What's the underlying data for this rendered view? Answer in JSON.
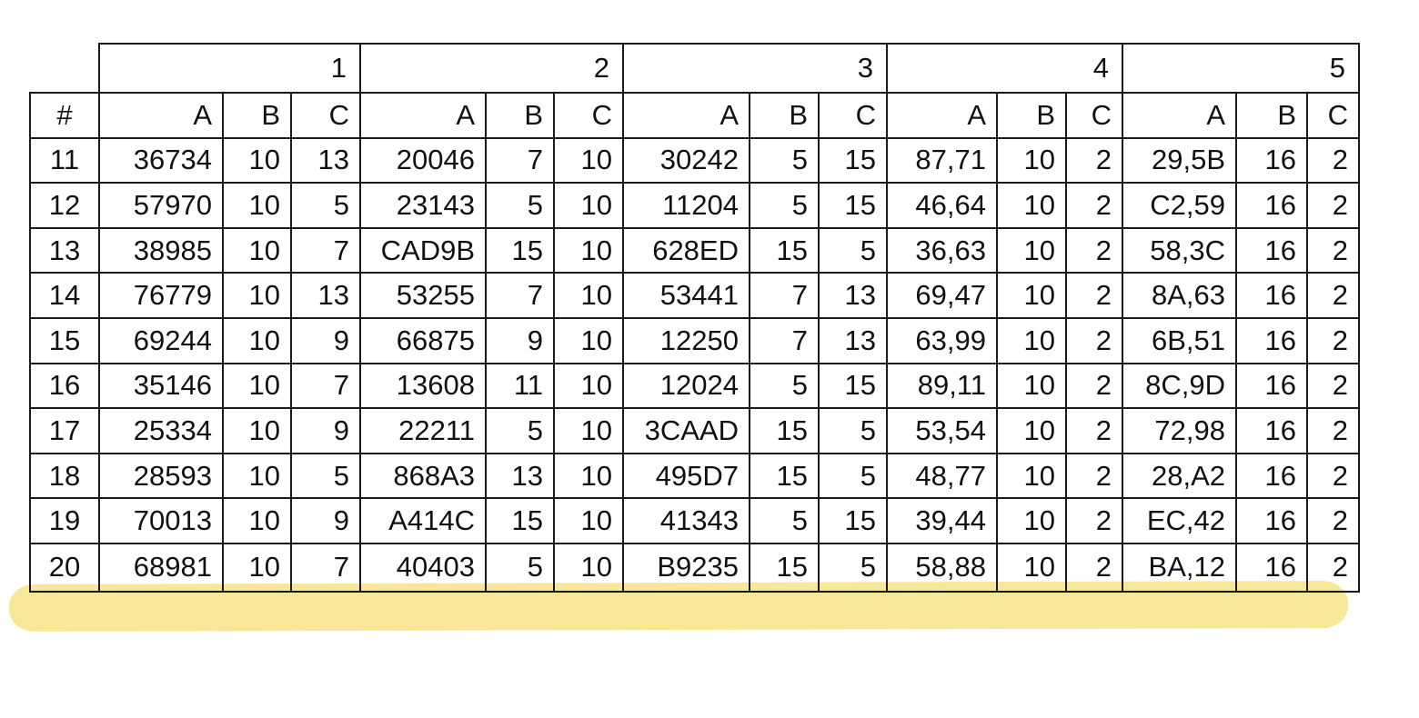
{
  "highlight_color": "#f5e27c",
  "corner_label": "#",
  "groups": [
    "1",
    "2",
    "3",
    "4",
    "5"
  ],
  "subcolumns": [
    "A",
    "B",
    "C"
  ],
  "rows": [
    [
      "11",
      "36734",
      "10",
      "13",
      "20046",
      "7",
      "10",
      "30242",
      "5",
      "15",
      "87,71",
      "10",
      "2",
      "29,5B",
      "16",
      "2"
    ],
    [
      "12",
      "57970",
      "10",
      "5",
      "23143",
      "5",
      "10",
      "11204",
      "5",
      "15",
      "46,64",
      "10",
      "2",
      "C2,59",
      "16",
      "2"
    ],
    [
      "13",
      "38985",
      "10",
      "7",
      "CAD9B",
      "15",
      "10",
      "628ED",
      "15",
      "5",
      "36,63",
      "10",
      "2",
      "58,3C",
      "16",
      "2"
    ],
    [
      "14",
      "76779",
      "10",
      "13",
      "53255",
      "7",
      "10",
      "53441",
      "7",
      "13",
      "69,47",
      "10",
      "2",
      "8A,63",
      "16",
      "2"
    ],
    [
      "15",
      "69244",
      "10",
      "9",
      "66875",
      "9",
      "10",
      "12250",
      "7",
      "13",
      "63,99",
      "10",
      "2",
      "6B,51",
      "16",
      "2"
    ],
    [
      "16",
      "35146",
      "10",
      "7",
      "13608",
      "11",
      "10",
      "12024",
      "5",
      "15",
      "89,11",
      "10",
      "2",
      "8C,9D",
      "16",
      "2"
    ],
    [
      "17",
      "25334",
      "10",
      "9",
      "22211",
      "5",
      "10",
      "3CAAD",
      "15",
      "5",
      "53,54",
      "10",
      "2",
      "72,98",
      "16",
      "2"
    ],
    [
      "18",
      "28593",
      "10",
      "5",
      "868A3",
      "13",
      "10",
      "495D7",
      "15",
      "5",
      "48,77",
      "10",
      "2",
      "28,A2",
      "16",
      "2"
    ],
    [
      "19",
      "70013",
      "10",
      "9",
      "A414C",
      "15",
      "10",
      "41343",
      "5",
      "15",
      "39,44",
      "10",
      "2",
      "EC,42",
      "16",
      "2"
    ],
    [
      "20",
      "68981",
      "10",
      "7",
      "40403",
      "5",
      "10",
      "B9235",
      "15",
      "5",
      "58,88",
      "10",
      "2",
      "BA,12",
      "16",
      "2"
    ]
  ],
  "highlighted_row": "20"
}
